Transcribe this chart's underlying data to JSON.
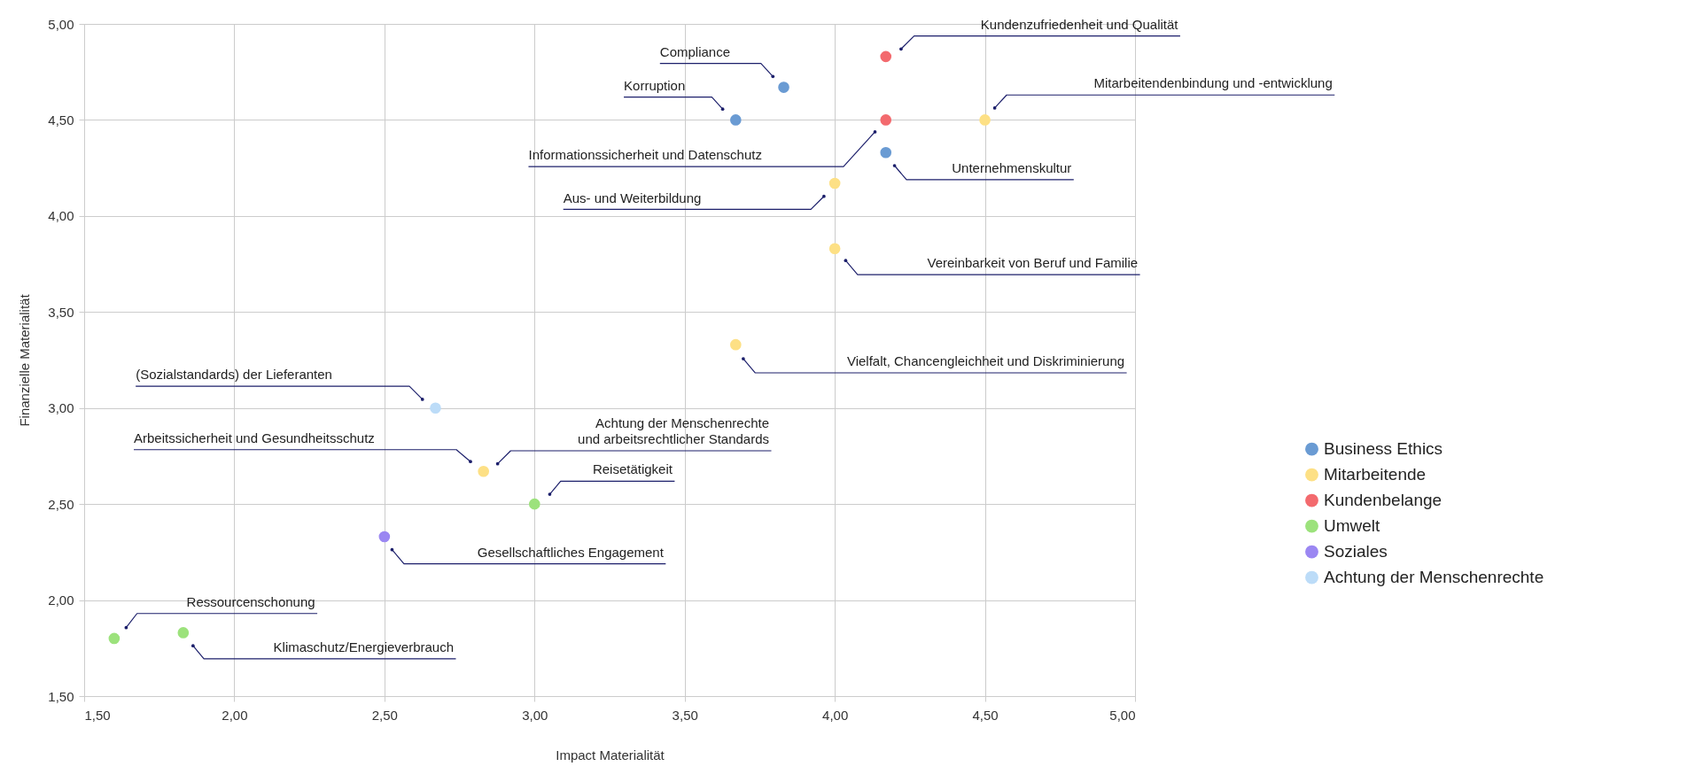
{
  "chart_data": {
    "type": "scatter",
    "xlabel": "Impact Materialität",
    "ylabel": "Finanzielle Materialität",
    "xlim": [
      1.5,
      5.0
    ],
    "ylim": [
      1.5,
      5.0
    ],
    "xticks": [
      {
        "value": 1.5,
        "label": "1,50"
      },
      {
        "value": 2.0,
        "label": "2,00"
      },
      {
        "value": 2.5,
        "label": "2,50"
      },
      {
        "value": 3.0,
        "label": "3,00"
      },
      {
        "value": 3.5,
        "label": "3,50"
      },
      {
        "value": 4.0,
        "label": "4,00"
      },
      {
        "value": 4.5,
        "label": "4,50"
      },
      {
        "value": 5.0,
        "label": "5,00"
      }
    ],
    "yticks": [
      {
        "value": 1.5,
        "label": "1,50"
      },
      {
        "value": 2.0,
        "label": "2,00"
      },
      {
        "value": 2.5,
        "label": "2,50"
      },
      {
        "value": 3.0,
        "label": "3,00"
      },
      {
        "value": 3.5,
        "label": "3,50"
      },
      {
        "value": 4.0,
        "label": "4,00"
      },
      {
        "value": 4.5,
        "label": "4,50"
      },
      {
        "value": 5.0,
        "label": "5,00"
      }
    ],
    "grid": true,
    "legend": "right",
    "marker": "circle",
    "series": [
      {
        "name": "Business Ethics",
        "color": "#6a9bd3",
        "x": [
          3.83,
          3.67,
          4.17
        ],
        "values": [
          4.67,
          4.5,
          4.33
        ]
      },
      {
        "name": "Mitarbeitende",
        "color": "#fde085",
        "x": [
          4.5,
          4.0,
          4.0,
          3.67,
          2.83
        ],
        "values": [
          4.5,
          4.17,
          3.83,
          3.33,
          2.67
        ]
      },
      {
        "name": "Kundenbelange",
        "color": "#f36a6e",
        "x": [
          4.17,
          4.17
        ],
        "values": [
          4.83,
          4.5
        ]
      },
      {
        "name": "Umwelt",
        "color": "#9ce27c",
        "x": [
          3.0,
          1.6,
          1.83
        ],
        "values": [
          2.5,
          1.8,
          1.83
        ]
      },
      {
        "name": "Soziales",
        "color": "#9b87f2",
        "x": [
          2.5
        ],
        "values": [
          2.33
        ]
      },
      {
        "name": "Achtung der Menschenrechte",
        "color": "#bcdcf8",
        "x": [
          2.67
        ],
        "values": [
          3.0
        ]
      }
    ],
    "annotations": [
      "Kundenzufriedenheit und Qualität",
      "Compliance",
      "Korruption",
      "Mitarbeitendenbindung und -entwicklung",
      "Informationssicherheit und Datenschutz",
      "Unternehmenskultur",
      "Aus- und Weiterbildung",
      "Vereinbarkeit von Beruf und Familie",
      "Vielfalt, Chancengleichheit und Diskriminierung",
      "(Sozialstandards) der Lieferanten",
      "Arbeitssicherheit und Gesundheitsschutz",
      "Achtung der Menschenrechte\nund arbeitsrechtlicher Standards",
      "Reisetätigkeit",
      "Gesellschaftliches Engagement",
      "Ressourcenschonung",
      "Klimaschutz/Energieverbrauch"
    ]
  }
}
